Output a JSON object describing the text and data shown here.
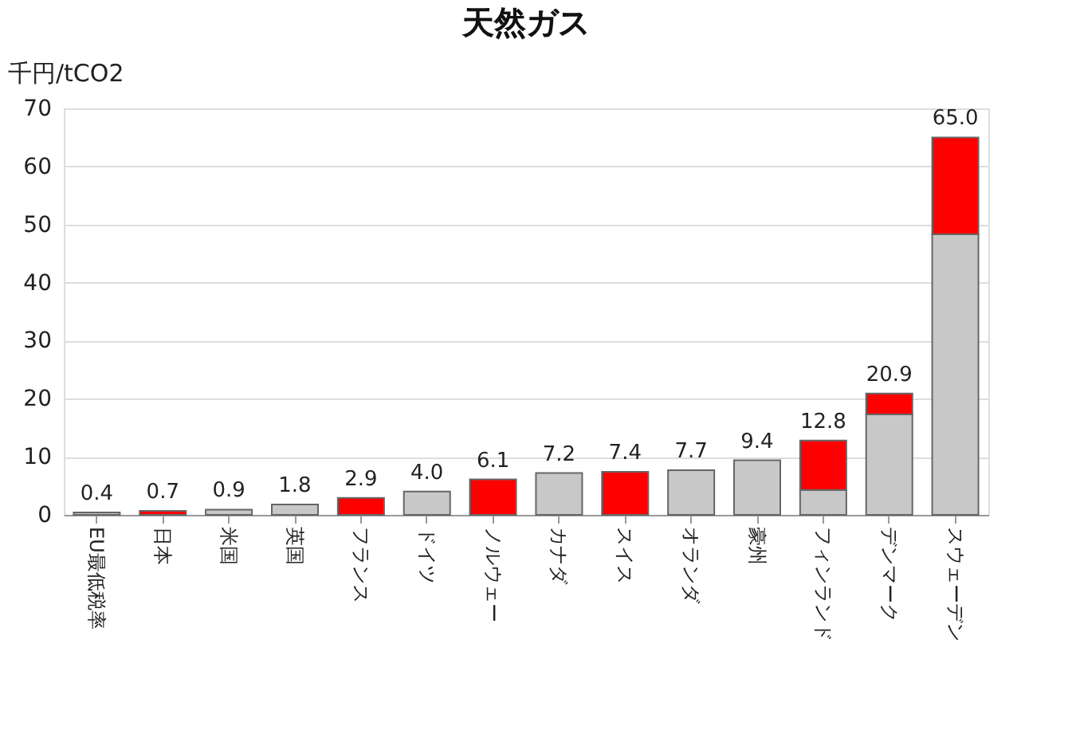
{
  "chart_data": {
    "type": "bar",
    "title": "天然ガス",
    "ylabel": "千円/tCO2",
    "categories": [
      "EU最低税率",
      "日本",
      "米国",
      "英国",
      "フランス",
      "ドイツ",
      "ノルウェー",
      "カナダ",
      "スイス",
      "オランダ",
      "豪州",
      "フィンランド",
      "デンマーク",
      "スウェーデン"
    ],
    "stacked": true,
    "series": [
      {
        "color": "#c8c8c8",
        "values": [
          0.4,
          null,
          0.9,
          1.8,
          null,
          4.0,
          null,
          7.2,
          null,
          7.7,
          9.4,
          4.3,
          17.3,
          48.3
        ]
      },
      {
        "color": "#ff0000",
        "values": [
          null,
          0.7,
          null,
          null,
          2.9,
          null,
          6.1,
          null,
          7.4,
          null,
          null,
          8.5,
          3.6,
          16.7
        ]
      }
    ],
    "totals": [
      "0.4",
      "0.7",
      "0.9",
      "1.8",
      "2.9",
      "4.0",
      "6.1",
      "7.2",
      "7.4",
      "7.7",
      "9.4",
      "12.8",
      "20.9",
      "65.0"
    ],
    "ylim": [
      0,
      70
    ],
    "yticks": [
      0,
      10,
      20,
      30,
      40,
      50,
      60,
      70
    ],
    "grid": "y"
  }
}
